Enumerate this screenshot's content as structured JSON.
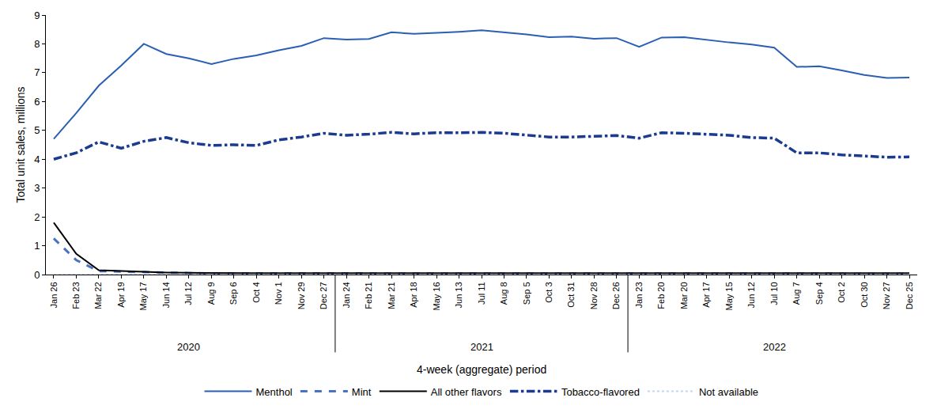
{
  "chart_data": {
    "type": "line",
    "x_label": "4-week (aggregate) period",
    "y_label": "Total unit sales, millions",
    "categories": [
      "Jan 26",
      "Feb 23",
      "Mar 22",
      "Apr 19",
      "May 17",
      "Jun 14",
      "Jul 12",
      "Aug 9",
      "Sep 6",
      "Oct 4",
      "Nov 1",
      "Nov 29",
      "Dec 27",
      "Jan 24",
      "Feb 21",
      "Mar 21",
      "Apr 18",
      "May 16",
      "Jun 13",
      "Jul 11",
      "Aug 8",
      "Sep 5",
      "Oct 3",
      "Oct 31",
      "Nov 28",
      "Dec 26",
      "Jan 23",
      "Feb 20",
      "Mar 20",
      "Apr 17",
      "May 15",
      "Jun 12",
      "Jul 10",
      "Aug 7",
      "Sep 4",
      "Oct 2",
      "Oct 30",
      "Nov 27",
      "Dec 25"
    ],
    "x_groups": [
      "2020",
      "2020",
      "2020",
      "2020",
      "2020",
      "2020",
      "2020",
      "2020",
      "2020",
      "2020",
      "2020",
      "2020",
      "2020",
      "2021",
      "2021",
      "2021",
      "2021",
      "2021",
      "2021",
      "2021",
      "2021",
      "2021",
      "2021",
      "2021",
      "2021",
      "2021",
      "2022",
      "2022",
      "2022",
      "2022",
      "2022",
      "2022",
      "2022",
      "2022",
      "2022",
      "2022",
      "2022",
      "2022",
      "2022"
    ],
    "series": [
      {
        "name": "Menthol",
        "color": "#2b5fb4",
        "line_style": "solid",
        "values": [
          4.7,
          5.6,
          6.55,
          7.25,
          8.0,
          7.65,
          7.5,
          7.3,
          7.48,
          7.6,
          7.78,
          7.93,
          8.2,
          8.15,
          8.17,
          8.4,
          8.35,
          8.38,
          8.42,
          8.47,
          8.4,
          8.33,
          8.23,
          8.25,
          8.18,
          8.2,
          7.9,
          8.22,
          8.23,
          8.13,
          8.05,
          7.98,
          7.87,
          7.2,
          7.22,
          7.08,
          6.92,
          6.82,
          6.83
        ]
      },
      {
        "name": "Mint",
        "color": "#4a72c4",
        "line_style": "dash",
        "values": [
          1.25,
          0.5,
          0.12,
          0.1,
          0.07,
          0.06,
          0.05,
          0.04,
          0.04,
          0.04,
          0.04,
          0.04,
          0.04,
          0.04,
          0.04,
          0.03,
          0.03,
          0.03,
          0.03,
          0.03,
          0.03,
          0.03,
          0.03,
          0.03,
          0.03,
          0.03,
          0.03,
          0.03,
          0.03,
          0.03,
          0.03,
          0.03,
          0.03,
          0.03,
          0.03,
          0.03,
          0.03,
          0.03,
          0.03
        ]
      },
      {
        "name": "All other flavors",
        "color": "#000000",
        "line_style": "solid",
        "values": [
          1.8,
          0.72,
          0.15,
          0.12,
          0.09,
          0.07,
          0.06,
          0.05,
          0.05,
          0.05,
          0.05,
          0.05,
          0.05,
          0.05,
          0.05,
          0.05,
          0.05,
          0.05,
          0.05,
          0.05,
          0.05,
          0.05,
          0.05,
          0.05,
          0.05,
          0.05,
          0.05,
          0.05,
          0.05,
          0.05,
          0.05,
          0.05,
          0.05,
          0.05,
          0.05,
          0.05,
          0.05,
          0.05,
          0.05
        ]
      },
      {
        "name": "Tobacco-flavored",
        "color": "#1a3b8f",
        "line_style": "dashdot",
        "values": [
          4.0,
          4.22,
          4.6,
          4.38,
          4.62,
          4.75,
          4.57,
          4.48,
          4.5,
          4.48,
          4.67,
          4.77,
          4.9,
          4.83,
          4.87,
          4.93,
          4.88,
          4.92,
          4.92,
          4.93,
          4.9,
          4.83,
          4.77,
          4.77,
          4.8,
          4.82,
          4.73,
          4.92,
          4.9,
          4.87,
          4.83,
          4.75,
          4.73,
          4.22,
          4.22,
          4.15,
          4.1,
          4.07,
          4.08
        ]
      },
      {
        "name": "Not available",
        "color": "#c6d3ee",
        "line_style": "dot",
        "values": [
          0,
          0,
          0,
          0,
          0,
          0,
          0,
          0,
          0,
          0,
          0,
          0,
          0,
          0,
          0,
          0,
          0,
          0,
          0,
          0,
          0,
          0,
          0,
          0,
          0,
          0,
          0,
          0,
          0,
          0,
          0,
          0,
          0,
          0,
          0,
          0,
          0,
          0,
          0
        ]
      }
    ],
    "ylim": [
      0,
      9
    ],
    "yticks": [
      0,
      1,
      2,
      3,
      4,
      5,
      6,
      7,
      8,
      9
    ],
    "grid": false,
    "legend": "bottom"
  }
}
